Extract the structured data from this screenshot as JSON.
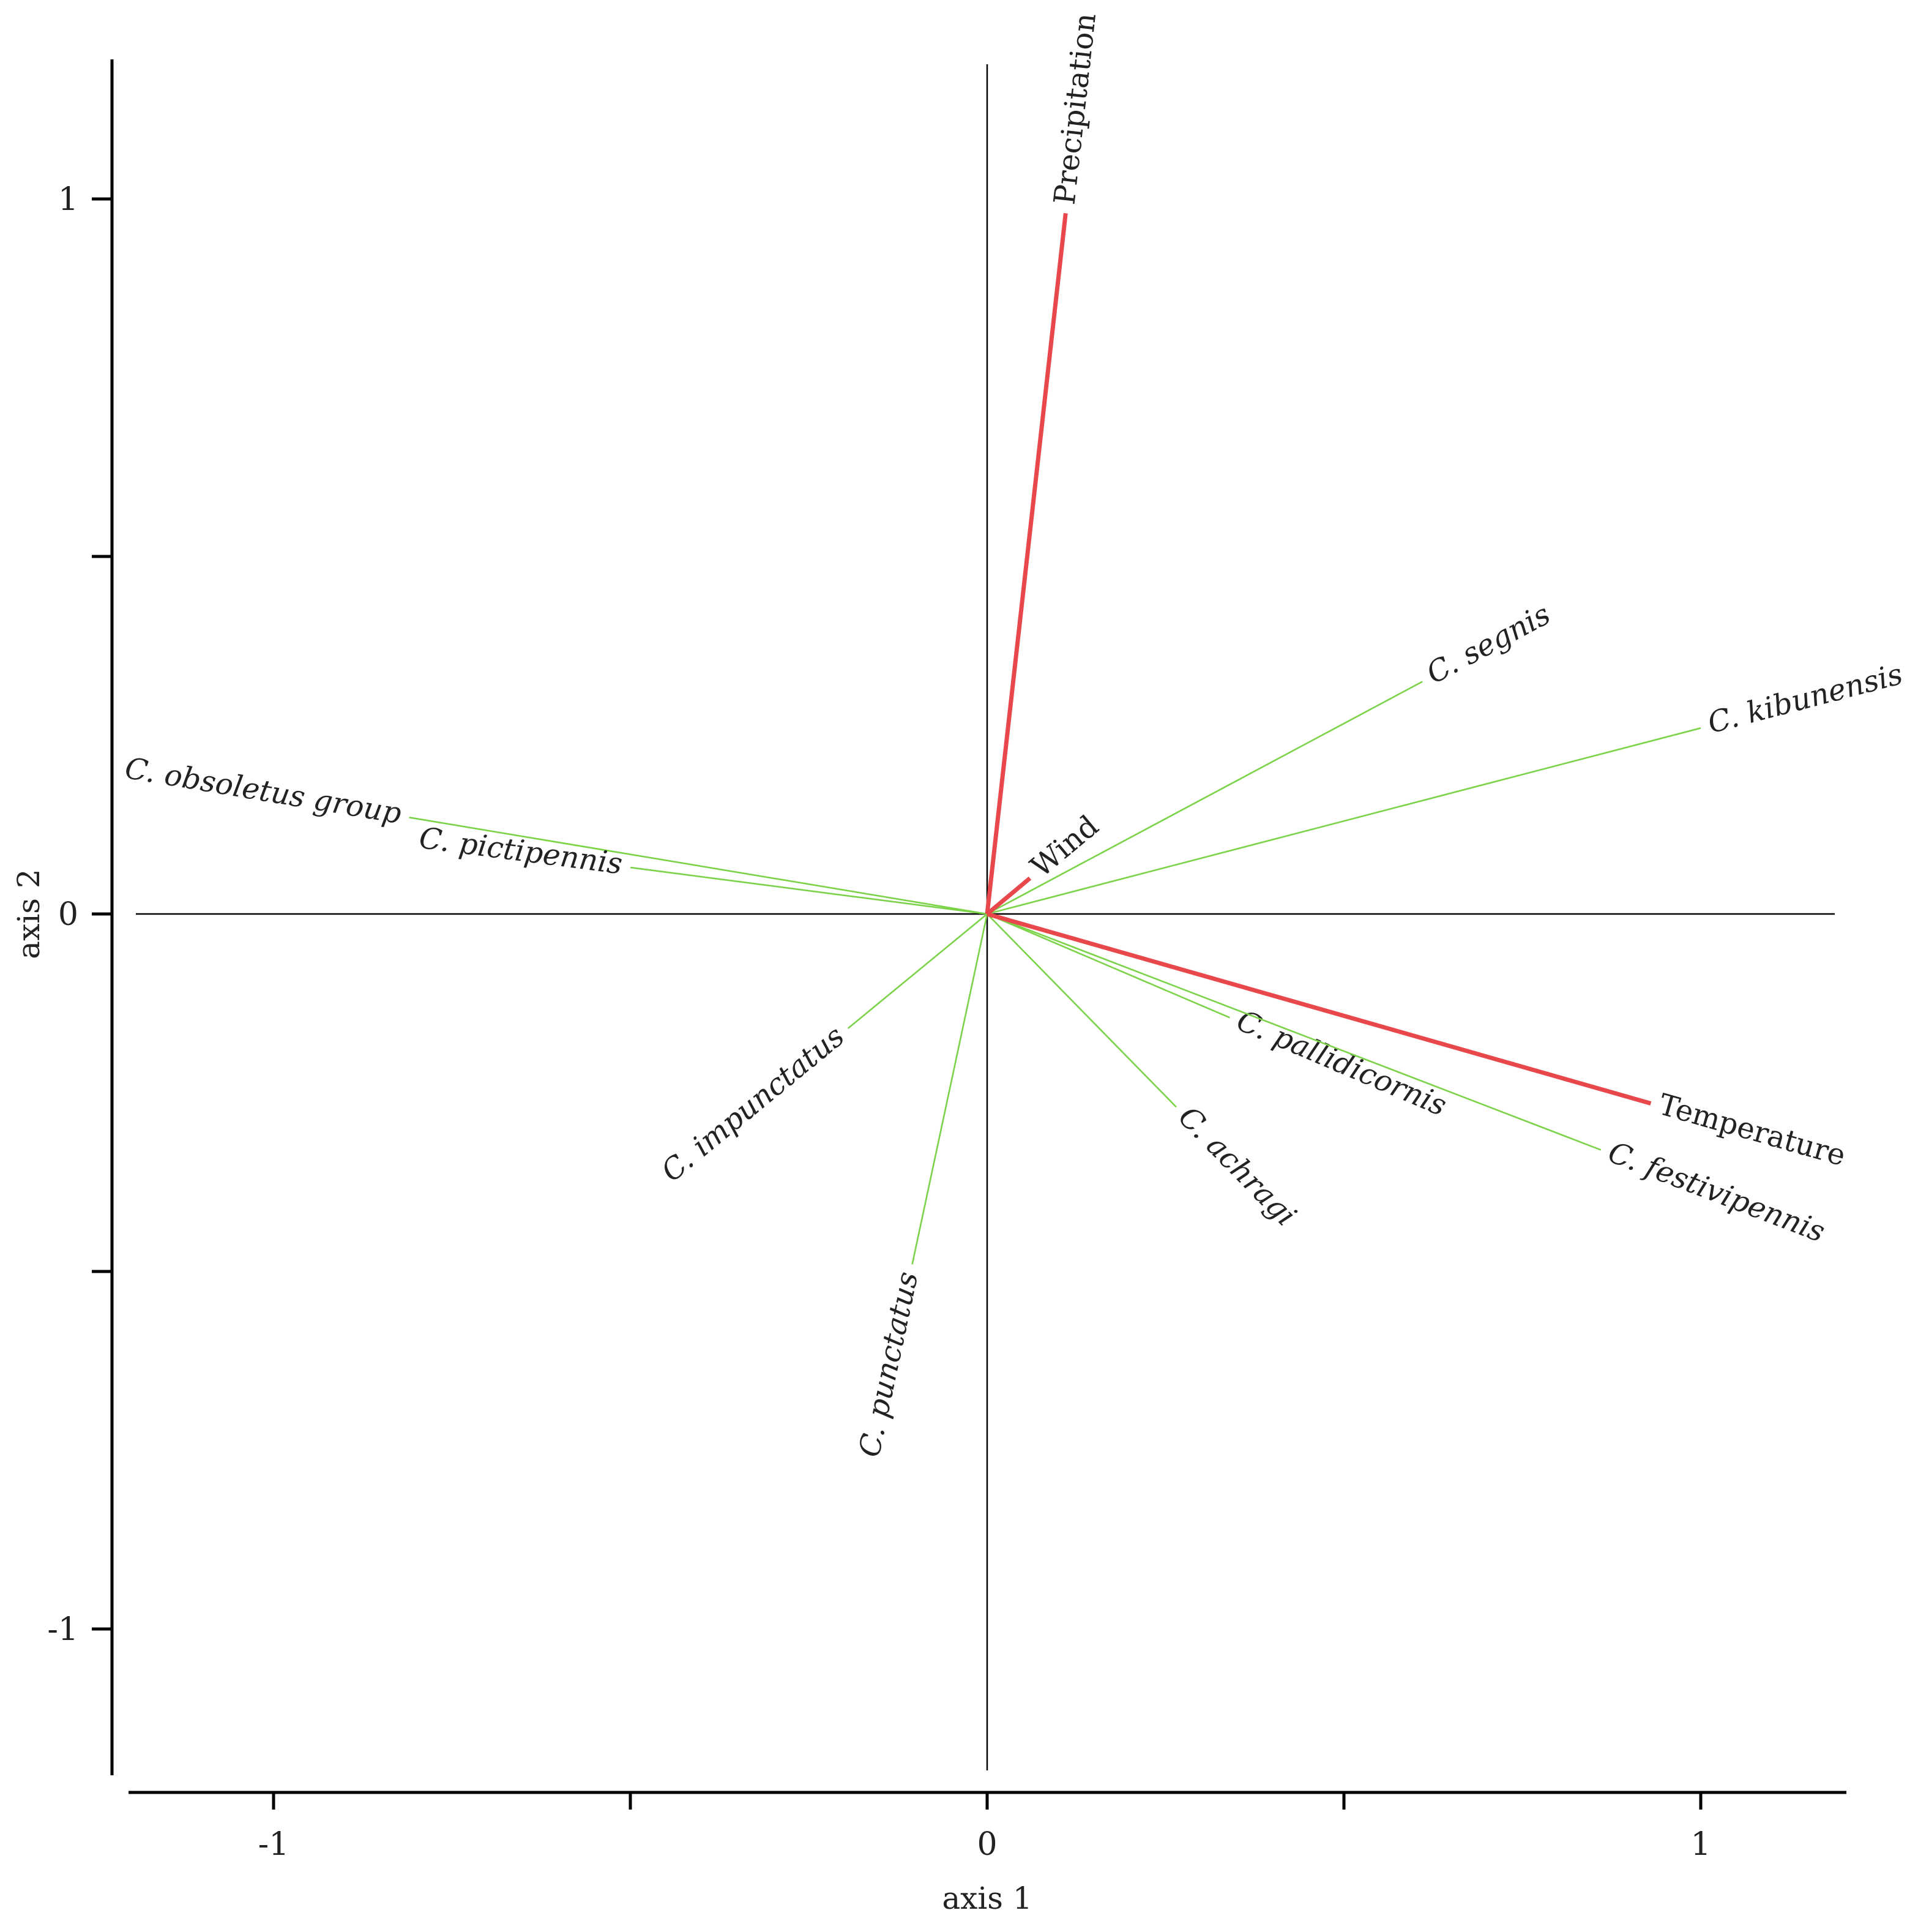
{
  "chart_data": {
    "type": "biplot",
    "title": "",
    "xlabel": "axis 1",
    "ylabel": "axis 2",
    "xlim": [
      -1.2,
      1.2
    ],
    "ylim": [
      -1.2,
      1.2
    ],
    "xticks": [
      -1,
      -0.5,
      0,
      0.5,
      1
    ],
    "yticks": [
      -1,
      -0.5,
      0,
      0.5,
      1
    ],
    "xtick_labels": [
      "-1",
      "",
      "0",
      "",
      "1"
    ],
    "ytick_labels": [
      "-1",
      "",
      "0",
      "",
      "1"
    ],
    "reference_lines": {
      "x": 0,
      "y": 0
    },
    "colors": {
      "environment": "#e8474c",
      "species": "#7cd34a",
      "reference": "#000000"
    },
    "environment_vectors": [
      {
        "label": "Precipitation",
        "x": 0.11,
        "y": 0.98
      },
      {
        "label": "Wind",
        "x": 0.06,
        "y": 0.05
      },
      {
        "label": "Temperature",
        "x": 0.93,
        "y": -0.265
      }
    ],
    "species_vectors": [
      {
        "label": "C. obsoletus group",
        "x": -0.81,
        "y": 0.135
      },
      {
        "label": "C. pictipennis",
        "x": -0.5,
        "y": 0.065
      },
      {
        "label": "C. segnis",
        "x": 0.61,
        "y": 0.325
      },
      {
        "label": "C. kibunensis",
        "x": 1.0,
        "y": 0.26
      },
      {
        "label": "C. impunctatus",
        "x": -0.195,
        "y": -0.16
      },
      {
        "label": "C. punctatus",
        "x": -0.105,
        "y": -0.49
      },
      {
        "label": "C. pallidicornis",
        "x": 0.34,
        "y": -0.145
      },
      {
        "label": "C. achragi",
        "x": 0.265,
        "y": -0.27
      },
      {
        "label": "C. festivipennis",
        "x": 0.86,
        "y": -0.33
      }
    ]
  }
}
